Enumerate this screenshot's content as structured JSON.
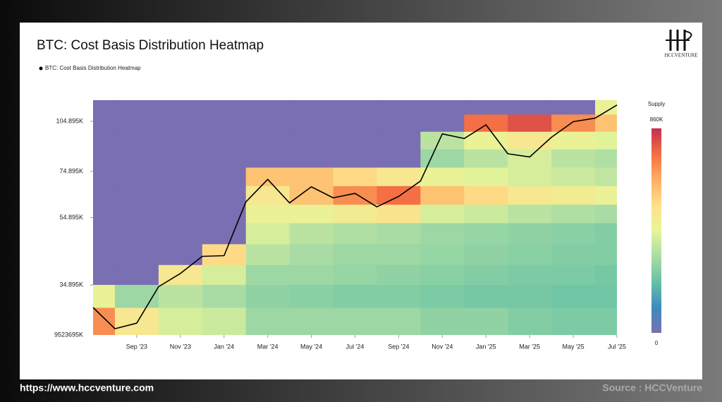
{
  "chart_data": {
    "type": "heatmap-line",
    "title": "BTC: Cost Basis Distribution Heatmap",
    "y_min_label": "9523695K",
    "log_y": true,
    "xlim": [
      "2023-07",
      "2025-07"
    ],
    "xticks": [
      {
        "value": "2023-09",
        "label": "Sep '23"
      },
      {
        "value": "2023-11",
        "label": "Nov '23"
      },
      {
        "value": "2024-01",
        "label": "Jan '24"
      },
      {
        "value": "2024-03",
        "label": "Mar '24"
      },
      {
        "value": "2024-05",
        "label": "May '24"
      },
      {
        "value": "2024-07",
        "label": "Jul '24"
      },
      {
        "value": "2024-09",
        "label": "Sep '24"
      },
      {
        "value": "2024-11",
        "label": "Nov '24"
      },
      {
        "value": "2025-01",
        "label": "Jan '25"
      },
      {
        "value": "2025-03",
        "label": "Mar '25"
      },
      {
        "value": "2025-05",
        "label": "May '25"
      },
      {
        "value": "2025-07",
        "label": "Jul '25"
      }
    ],
    "ylim": [
      24930,
      120900
    ],
    "yticks": [
      {
        "value": 34895,
        "label": "34.895K"
      },
      {
        "value": 54895,
        "label": "54.895K"
      },
      {
        "value": 74895,
        "label": "74.895K"
      },
      {
        "value": 104895,
        "label": "104.895K"
      }
    ],
    "series": [
      {
        "name": "BTC: Cost Basis Distribution Heatmap",
        "color": "#000000",
        "x": [
          "2023-07",
          "2023-08",
          "2023-09",
          "2023-10",
          "2023-11",
          "2023-12",
          "2024-01",
          "2024-02",
          "2024-03",
          "2024-04",
          "2024-05",
          "2024-06",
          "2024-07",
          "2024-08",
          "2024-09",
          "2024-10",
          "2024-11",
          "2024-12",
          "2025-01",
          "2025-02",
          "2025-03",
          "2025-04",
          "2025-05",
          "2025-06",
          "2025-07"
        ],
        "values": [
          30000,
          26000,
          27000,
          34500,
          37700,
          42300,
          42500,
          61000,
          71000,
          60600,
          67500,
          62700,
          64600,
          59000,
          63300,
          70200,
          96400,
          93400,
          102400,
          84300,
          82500,
          94200,
          104600,
          107100,
          117000
        ]
      }
    ],
    "heatmap": {
      "x": [
        "2023-07",
        "2023-09",
        "2023-11",
        "2024-01",
        "2024-03",
        "2024-05",
        "2024-07",
        "2024-09",
        "2024-11",
        "2025-01",
        "2025-03",
        "2025-05",
        "2025-07"
      ],
      "price_bins": [
        24930,
        30000,
        35000,
        40000,
        46000,
        53000,
        60000,
        68000,
        77000,
        87000,
        98000,
        110000,
        120900
      ],
      "supply": [
        [
          700000,
          500000,
          400000,
          380000,
          300000,
          300000,
          300000,
          300000,
          280000,
          280000,
          260000,
          250000,
          250000
        ],
        [
          450000,
          300000,
          350000,
          320000,
          280000,
          270000,
          260000,
          260000,
          250000,
          240000,
          240000,
          230000,
          230000
        ],
        [
          0,
          0,
          500000,
          400000,
          300000,
          300000,
          290000,
          280000,
          270000,
          260000,
          250000,
          250000,
          240000
        ],
        [
          0,
          0,
          0,
          550000,
          350000,
          320000,
          300000,
          300000,
          290000,
          280000,
          270000,
          260000,
          260000
        ],
        [
          0,
          0,
          0,
          0,
          400000,
          350000,
          330000,
          320000,
          300000,
          290000,
          280000,
          270000,
          260000
        ],
        [
          0,
          0,
          0,
          0,
          450000,
          450000,
          480000,
          520000,
          400000,
          380000,
          350000,
          330000,
          320000
        ],
        [
          0,
          0,
          0,
          0,
          500000,
          600000,
          700000,
          750000,
          600000,
          550000,
          500000,
          480000,
          450000
        ],
        [
          0,
          0,
          0,
          0,
          600000,
          600000,
          550000,
          500000,
          450000,
          420000,
          400000,
          380000,
          360000
        ],
        [
          0,
          0,
          0,
          0,
          0,
          0,
          0,
          0,
          300000,
          350000,
          400000,
          350000,
          330000
        ],
        [
          0,
          0,
          0,
          0,
          0,
          0,
          0,
          0,
          350000,
          450000,
          500000,
          450000,
          420000
        ],
        [
          0,
          0,
          0,
          0,
          0,
          0,
          0,
          0,
          0,
          750000,
          800000,
          700000,
          600000
        ],
        [
          0,
          0,
          0,
          0,
          0,
          0,
          0,
          0,
          0,
          0,
          0,
          0,
          450000
        ]
      ],
      "colorbar_title": "Supply",
      "colorlim": [
        0,
        860000
      ],
      "colorbar_ticks": [
        0,
        {
          "value": 860000,
          "label": "860K"
        }
      ],
      "colorscale": [
        "#7b6fb3",
        "#3d8bbf",
        "#66c2a5",
        "#abdda4",
        "#e6f598",
        "#fee08b",
        "#fdae61",
        "#f46d43",
        "#c2304f"
      ]
    }
  },
  "logo": "HCCVENTURE",
  "footer": {
    "url": "https://www.hccventure.com",
    "source": "Source : HCCVenture"
  }
}
